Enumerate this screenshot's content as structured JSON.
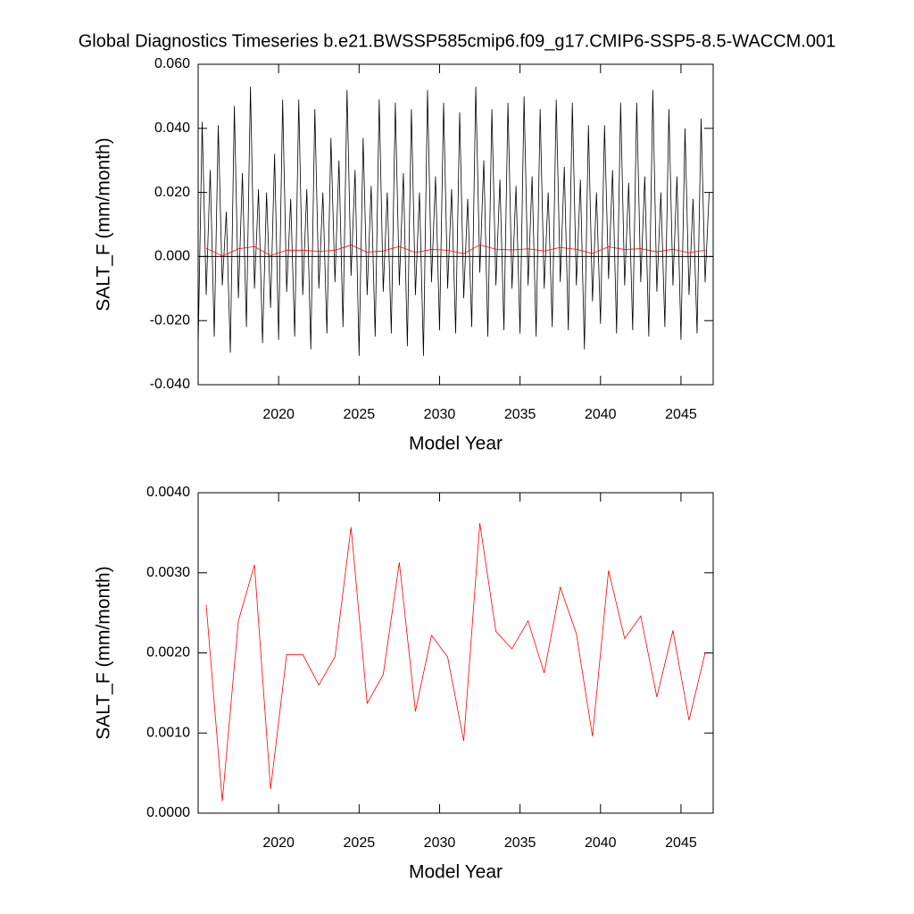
{
  "chart_data": [
    {
      "type": "line",
      "title": "Global Diagnostics Timeseries b.e21.BWSSP585cmip6.f09_g17.CMIP6-SSP5-8.5-WACCM.001",
      "x_label": "Model Year",
      "y_label": "SALT_F (mm/month)",
      "xlim": [
        2015,
        2047
      ],
      "xticks": [
        2020,
        2025,
        2030,
        2035,
        2040,
        2045
      ],
      "ylim": [
        -0.04,
        0.06
      ],
      "yticks": [
        {
          "value": -0.04,
          "label": "-0.040"
        },
        {
          "value": -0.02,
          "label": "-0.020"
        },
        {
          "value": 0,
          "label": "0.000"
        },
        {
          "value": 0.02,
          "label": "0.020"
        },
        {
          "value": 0.04,
          "label": "0.040"
        },
        {
          "value": 0.06,
          "label": "0.060"
        }
      ],
      "reference_line": 0,
      "series": [
        {
          "color": "#000000",
          "x": [
            2015,
            2015.25,
            2015.5,
            2015.75,
            2016,
            2016.25,
            2016.5,
            2016.75,
            2017,
            2017.25,
            2017.5,
            2017.75,
            2018,
            2018.25,
            2018.5,
            2018.75,
            2019,
            2019.25,
            2019.5,
            2019.75,
            2020,
            2020.25,
            2020.5,
            2020.75,
            2021,
            2021.25,
            2021.5,
            2021.75,
            2022,
            2022.25,
            2022.5,
            2022.75,
            2023,
            2023.25,
            2023.5,
            2023.75,
            2024,
            2024.25,
            2024.5,
            2024.75,
            2025,
            2025.25,
            2025.5,
            2025.75,
            2026,
            2026.25,
            2026.5,
            2026.75,
            2027,
            2027.25,
            2027.5,
            2027.75,
            2028,
            2028.25,
            2028.5,
            2028.75,
            2029,
            2029.25,
            2029.5,
            2029.75,
            2030,
            2030.25,
            2030.5,
            2030.75,
            2031,
            2031.25,
            2031.5,
            2031.75,
            2032,
            2032.25,
            2032.5,
            2032.75,
            2033,
            2033.25,
            2033.5,
            2033.75,
            2034,
            2034.25,
            2034.5,
            2034.75,
            2035,
            2035.25,
            2035.5,
            2035.75,
            2036,
            2036.25,
            2036.5,
            2036.75,
            2037,
            2037.25,
            2037.5,
            2037.75,
            2038,
            2038.25,
            2038.5,
            2038.75,
            2039,
            2039.25,
            2039.5,
            2039.75,
            2040,
            2040.25,
            2040.5,
            2040.75,
            2041,
            2041.25,
            2041.5,
            2041.75,
            2042,
            2042.25,
            2042.5,
            2042.75,
            2043,
            2043.25,
            2043.5,
            2043.75,
            2044,
            2044.25,
            2044.5,
            2044.75,
            2045,
            2045.25,
            2045.5,
            2045.75,
            2046,
            2046.25,
            2046.5,
            2046.75
          ],
          "values": [
            -0.028,
            0.042,
            -0.012,
            0.027,
            -0.025,
            0.041,
            -0.009,
            0.014,
            -0.03,
            0.047,
            -0.013,
            0.026,
            -0.022,
            0.053,
            -0.01,
            0.021,
            -0.027,
            0.02,
            -0.016,
            0.032,
            -0.026,
            0.049,
            -0.011,
            0.018,
            -0.025,
            0.049,
            -0.012,
            0.021,
            -0.029,
            0.046,
            -0.01,
            0.02,
            -0.024,
            0.037,
            -0.008,
            0.03,
            -0.022,
            0.052,
            -0.006,
            0.027,
            -0.031,
            0.037,
            -0.012,
            0.022,
            -0.025,
            0.049,
            -0.011,
            0.02,
            -0.024,
            0.048,
            -0.009,
            0.026,
            -0.028,
            0.046,
            -0.012,
            0.02,
            -0.031,
            0.052,
            -0.008,
            0.025,
            -0.023,
            0.048,
            -0.01,
            0.021,
            -0.024,
            0.045,
            -0.013,
            0.018,
            -0.022,
            0.053,
            -0.005,
            0.03,
            -0.025,
            0.046,
            -0.009,
            0.024,
            -0.023,
            0.048,
            -0.01,
            0.022,
            -0.024,
            0.05,
            -0.009,
            0.025,
            -0.025,
            0.046,
            -0.01,
            0.02,
            -0.022,
            0.049,
            -0.008,
            0.028,
            -0.023,
            0.048,
            -0.009,
            0.024,
            -0.029,
            0.041,
            -0.014,
            0.02,
            -0.021,
            0.041,
            -0.007,
            0.027,
            -0.024,
            0.048,
            -0.009,
            0.023,
            -0.023,
            0.048,
            -0.008,
            0.025,
            -0.025,
            0.052,
            -0.011,
            0.02,
            -0.022,
            0.046,
            -0.009,
            0.025,
            -0.026,
            0.04,
            -0.012,
            0.018,
            -0.024,
            0.043,
            -0.008,
            0.02
          ]
        },
        {
          "color": "#ff0000",
          "x": [
            2015.5,
            2016.5,
            2017.5,
            2018.5,
            2019.5,
            2020.5,
            2021.5,
            2022.5,
            2023.5,
            2024.5,
            2025.5,
            2026.5,
            2027.5,
            2028.5,
            2029.5,
            2030.5,
            2031.5,
            2032.5,
            2033.5,
            2034.5,
            2035.5,
            2036.5,
            2037.5,
            2038.5,
            2039.5,
            2040.5,
            2041.5,
            2042.5,
            2043.5,
            2044.5,
            2045.5,
            2046.5
          ],
          "values": [
            0.0026,
            0.00015,
            0.0024,
            0.0031,
            0.0003,
            0.00198,
            0.00198,
            0.0016,
            0.00195,
            0.00357,
            0.00137,
            0.00173,
            0.00313,
            0.00127,
            0.00222,
            0.00195,
            0.0009,
            0.00362,
            0.00227,
            0.00205,
            0.0024,
            0.00175,
            0.00282,
            0.00224,
            0.00096,
            0.00303,
            0.00218,
            0.00246,
            0.00145,
            0.00228,
            0.00116,
            0.002
          ]
        }
      ]
    },
    {
      "type": "line",
      "x_label": "Model Year",
      "y_label": "SALT_F (mm/month)",
      "xlim": [
        2015,
        2047
      ],
      "xticks": [
        2020,
        2025,
        2030,
        2035,
        2040,
        2045
      ],
      "ylim": [
        0,
        0.004
      ],
      "yticks": [
        {
          "value": 0,
          "label": "0.0000"
        },
        {
          "value": 0.001,
          "label": "0.0010"
        },
        {
          "value": 0.002,
          "label": "0.0020"
        },
        {
          "value": 0.003,
          "label": "0.0030"
        },
        {
          "value": 0.004,
          "label": "0.0040"
        }
      ],
      "series": [
        {
          "color": "#ff0000",
          "x": [
            2015.5,
            2016.5,
            2017.5,
            2018.5,
            2019.5,
            2020.5,
            2021.5,
            2022.5,
            2023.5,
            2024.5,
            2025.5,
            2026.5,
            2027.5,
            2028.5,
            2029.5,
            2030.5,
            2031.5,
            2032.5,
            2033.5,
            2034.5,
            2035.5,
            2036.5,
            2037.5,
            2038.5,
            2039.5,
            2040.5,
            2041.5,
            2042.5,
            2043.5,
            2044.5,
            2045.5,
            2046.5
          ],
          "values": [
            0.0026,
            0.00015,
            0.0024,
            0.0031,
            0.0003,
            0.00198,
            0.00198,
            0.0016,
            0.00195,
            0.00357,
            0.00137,
            0.00173,
            0.00313,
            0.00127,
            0.00222,
            0.00195,
            0.0009,
            0.00362,
            0.00227,
            0.00205,
            0.0024,
            0.00175,
            0.00282,
            0.00224,
            0.00096,
            0.00303,
            0.00218,
            0.00246,
            0.00145,
            0.00228,
            0.00116,
            0.002
          ]
        }
      ]
    }
  ]
}
